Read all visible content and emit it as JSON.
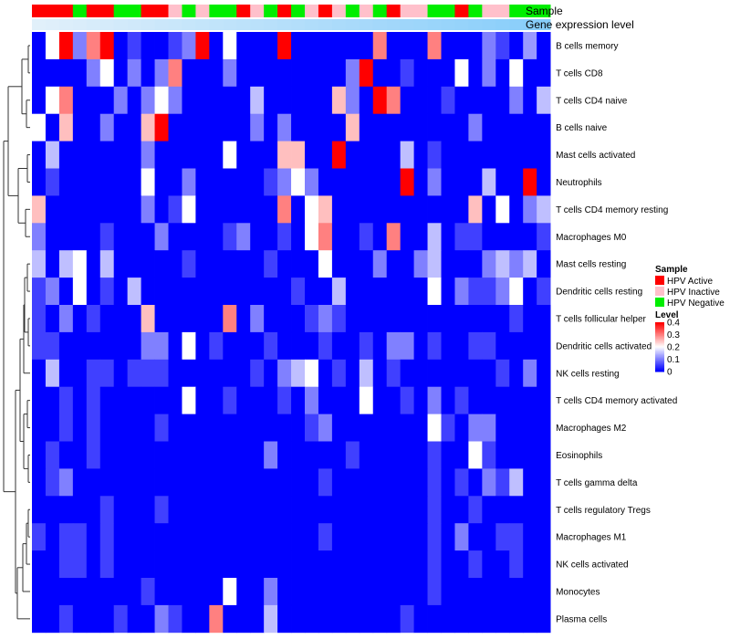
{
  "chart_data": {
    "type": "heatmap",
    "annotation_labels": [
      "Sample",
      "Gene expression level"
    ],
    "rows": [
      "B cells memory",
      "T cells CD8",
      "T cells CD4 naive",
      "B cells naive",
      "Mast cells activated",
      "Neutrophils",
      "T cells CD4 memory resting",
      "Macrophages M0",
      "Mast cells resting",
      "Dendritic cells resting",
      "T cells follicular helper",
      "Dendritic cells activated",
      "NK cells resting",
      "T cells CD4 memory activated",
      "Macrophages M2",
      "Eosinophils",
      "T cells gamma delta",
      "T cells regulatory  Tregs",
      "Macrophages M1",
      "NK cells activated",
      "Monocytes",
      "Plasma cells"
    ],
    "sample_groups": [
      "A",
      "A",
      "A",
      "N",
      "A",
      "A",
      "N",
      "N",
      "A",
      "A",
      "I",
      "N",
      "I",
      "N",
      "N",
      "A",
      "I",
      "N",
      "A",
      "N",
      "I",
      "A",
      "I",
      "N",
      "I",
      "N",
      "A",
      "I",
      "I",
      "N",
      "N",
      "A",
      "N",
      "I",
      "I",
      "N",
      "N",
      "N"
    ],
    "values": [
      [
        0.0,
        0.2,
        0.4,
        0.1,
        0.3,
        0.4,
        0.0,
        0.05,
        0.0,
        0.0,
        0.05,
        0.1,
        0.4,
        0.0,
        0.2,
        0.0,
        0.0,
        0.0,
        0.4,
        0.0,
        0.0,
        0.0,
        0.0,
        0.0,
        0.0,
        0.3,
        0.0,
        0.0,
        0.0,
        0.3,
        0.0,
        0.0,
        0.0,
        0.1,
        0.05,
        0.0,
        0.12,
        0.0
      ],
      [
        0.0,
        0.0,
        0.0,
        0.0,
        0.1,
        0.2,
        0.0,
        0.1,
        0.0,
        0.1,
        0.3,
        0.0,
        0.0,
        0.0,
        0.1,
        0.0,
        0.0,
        0.0,
        0.0,
        0.0,
        0.0,
        0.0,
        0.0,
        0.1,
        0.4,
        0.0,
        0.0,
        0.05,
        0.0,
        0.0,
        0.0,
        0.2,
        0.0,
        0.1,
        0.0,
        0.2,
        0.0,
        0.0
      ],
      [
        0.0,
        0.2,
        0.3,
        0.0,
        0.0,
        0.0,
        0.1,
        0.0,
        0.1,
        0.2,
        0.1,
        0.0,
        0.0,
        0.0,
        0.0,
        0.0,
        0.15,
        0.0,
        0.0,
        0.0,
        0.0,
        0.0,
        0.25,
        0.1,
        0.0,
        0.4,
        0.3,
        0.0,
        0.0,
        0.0,
        0.05,
        0.0,
        0.0,
        0.0,
        0.0,
        0.1,
        0.0,
        0.15
      ],
      [
        0.2,
        0.0,
        0.25,
        0.0,
        0.0,
        0.1,
        0.0,
        0.0,
        0.25,
        0.4,
        0.0,
        0.0,
        0.0,
        0.0,
        0.0,
        0.0,
        0.1,
        0.0,
        0.1,
        0.0,
        0.0,
        0.0,
        0.0,
        0.25,
        0.0,
        0.0,
        0.0,
        0.0,
        0.0,
        0.0,
        0.0,
        0.0,
        0.1,
        0.0,
        0.0,
        0.0,
        0.0,
        0.0
      ],
      [
        0.0,
        0.15,
        0.0,
        0.0,
        0.0,
        0.0,
        0.0,
        0.0,
        0.1,
        0.0,
        0.0,
        0.0,
        0.0,
        0.0,
        0.2,
        0.0,
        0.0,
        0.0,
        0.25,
        0.25,
        0.0,
        0.0,
        0.4,
        0.0,
        0.0,
        0.0,
        0.0,
        0.15,
        0.0,
        0.05,
        0.0,
        0.0,
        0.0,
        0.0,
        0.0,
        0.0,
        0.0,
        0.0
      ],
      [
        0.0,
        0.05,
        0.0,
        0.0,
        0.0,
        0.0,
        0.0,
        0.0,
        0.2,
        0.0,
        0.0,
        0.1,
        0.0,
        0.0,
        0.0,
        0.0,
        0.0,
        0.05,
        0.1,
        0.2,
        0.1,
        0.0,
        0.0,
        0.0,
        0.0,
        0.0,
        0.0,
        0.4,
        0.0,
        0.1,
        0.0,
        0.0,
        0.0,
        0.15,
        0.0,
        0.0,
        0.4,
        0.0
      ],
      [
        0.25,
        0.0,
        0.0,
        0.0,
        0.0,
        0.0,
        0.0,
        0.0,
        0.1,
        0.0,
        0.05,
        0.2,
        0.0,
        0.0,
        0.0,
        0.0,
        0.0,
        0.0,
        0.3,
        0.0,
        0.2,
        0.25,
        0.0,
        0.0,
        0.0,
        0.0,
        0.0,
        0.0,
        0.0,
        0.0,
        0.0,
        0.0,
        0.25,
        0.0,
        0.2,
        0.0,
        0.1,
        0.15
      ],
      [
        0.1,
        0.0,
        0.0,
        0.0,
        0.0,
        0.05,
        0.0,
        0.0,
        0.0,
        0.1,
        0.0,
        0.0,
        0.0,
        0.0,
        0.05,
        0.1,
        0.0,
        0.0,
        0.05,
        0.0,
        0.2,
        0.3,
        0.0,
        0.0,
        0.05,
        0.0,
        0.3,
        0.0,
        0.0,
        0.15,
        0.0,
        0.05,
        0.05,
        0.0,
        0.0,
        0.0,
        0.0,
        0.05
      ],
      [
        0.15,
        0.0,
        0.15,
        0.2,
        0.0,
        0.15,
        0.0,
        0.0,
        0.0,
        0.0,
        0.0,
        0.05,
        0.0,
        0.0,
        0.0,
        0.0,
        0.0,
        0.05,
        0.0,
        0.0,
        0.0,
        0.2,
        0.0,
        0.0,
        0.0,
        0.1,
        0.0,
        0.0,
        0.1,
        0.15,
        0.0,
        0.0,
        0.0,
        0.1,
        0.15,
        0.1,
        0.15,
        0.0
      ],
      [
        0.05,
        0.1,
        0.0,
        0.2,
        0.0,
        0.05,
        0.0,
        0.15,
        0.0,
        0.0,
        0.0,
        0.0,
        0.0,
        0.0,
        0.0,
        0.0,
        0.0,
        0.0,
        0.0,
        0.05,
        0.0,
        0.0,
        0.15,
        0.0,
        0.0,
        0.0,
        0.0,
        0.0,
        0.0,
        0.2,
        0.0,
        0.1,
        0.05,
        0.05,
        0.1,
        0.2,
        0.0,
        0.05
      ],
      [
        0.05,
        0.0,
        0.1,
        0.0,
        0.05,
        0.0,
        0.0,
        0.0,
        0.25,
        0.0,
        0.0,
        0.0,
        0.0,
        0.0,
        0.3,
        0.0,
        0.1,
        0.0,
        0.0,
        0.0,
        0.05,
        0.1,
        0.05,
        0.0,
        0.0,
        0.0,
        0.0,
        0.0,
        0.0,
        0.0,
        0.0,
        0.0,
        0.0,
        0.0,
        0.0,
        0.05,
        0.0,
        0.0
      ],
      [
        0.05,
        0.05,
        0.0,
        0.0,
        0.0,
        0.0,
        0.0,
        0.0,
        0.1,
        0.1,
        0.0,
        0.2,
        0.0,
        0.05,
        0.0,
        0.0,
        0.0,
        0.05,
        0.0,
        0.0,
        0.0,
        0.05,
        0.0,
        0.0,
        0.05,
        0.0,
        0.1,
        0.1,
        0.0,
        0.05,
        0.0,
        0.0,
        0.05,
        0.05,
        0.0,
        0.0,
        0.0,
        0.0
      ],
      [
        0.0,
        0.15,
        0.0,
        0.0,
        0.05,
        0.05,
        0.0,
        0.05,
        0.05,
        0.05,
        0.0,
        0.0,
        0.0,
        0.0,
        0.0,
        0.0,
        0.05,
        0.0,
        0.1,
        0.15,
        0.2,
        0.0,
        0.05,
        0.0,
        0.15,
        0.0,
        0.05,
        0.0,
        0.0,
        0.0,
        0.0,
        0.0,
        0.0,
        0.0,
        0.05,
        0.0,
        0.1,
        0.0
      ],
      [
        0.0,
        0.0,
        0.05,
        0.0,
        0.05,
        0.0,
        0.0,
        0.0,
        0.0,
        0.0,
        0.0,
        0.2,
        0.0,
        0.0,
        0.05,
        0.0,
        0.0,
        0.0,
        0.05,
        0.0,
        0.1,
        0.0,
        0.0,
        0.0,
        0.2,
        0.0,
        0.0,
        0.05,
        0.0,
        0.1,
        0.0,
        0.05,
        0.0,
        0.0,
        0.0,
        0.0,
        0.0,
        0.0
      ],
      [
        0.0,
        0.0,
        0.05,
        0.0,
        0.05,
        0.0,
        0.0,
        0.0,
        0.0,
        0.05,
        0.0,
        0.0,
        0.0,
        0.0,
        0.0,
        0.0,
        0.0,
        0.0,
        0.0,
        0.0,
        0.05,
        0.1,
        0.0,
        0.0,
        0.0,
        0.0,
        0.0,
        0.0,
        0.0,
        0.2,
        0.05,
        0.0,
        0.1,
        0.1,
        0.0,
        0.0,
        0.0,
        0.0
      ],
      [
        0.0,
        0.05,
        0.0,
        0.0,
        0.05,
        0.0,
        0.0,
        0.0,
        0.0,
        0.0,
        0.0,
        0.0,
        0.0,
        0.0,
        0.0,
        0.0,
        0.0,
        0.1,
        0.0,
        0.0,
        0.0,
        0.0,
        0.0,
        0.05,
        0.0,
        0.0,
        0.0,
        0.0,
        0.0,
        0.05,
        0.0,
        0.0,
        0.2,
        0.05,
        0.0,
        0.0,
        0.0,
        0.0
      ],
      [
        0.0,
        0.05,
        0.1,
        0.0,
        0.0,
        0.0,
        0.0,
        0.0,
        0.0,
        0.0,
        0.0,
        0.0,
        0.0,
        0.0,
        0.0,
        0.0,
        0.0,
        0.0,
        0.0,
        0.0,
        0.0,
        0.05,
        0.0,
        0.0,
        0.0,
        0.0,
        0.0,
        0.0,
        0.0,
        0.05,
        0.0,
        0.05,
        0.0,
        0.1,
        0.05,
        0.15,
        0.0,
        0.0
      ],
      [
        0.0,
        0.0,
        0.0,
        0.0,
        0.0,
        0.05,
        0.0,
        0.0,
        0.0,
        0.05,
        0.0,
        0.0,
        0.0,
        0.0,
        0.0,
        0.0,
        0.0,
        0.0,
        0.0,
        0.0,
        0.0,
        0.0,
        0.0,
        0.0,
        0.0,
        0.0,
        0.0,
        0.0,
        0.0,
        0.05,
        0.0,
        0.0,
        0.05,
        0.0,
        0.0,
        0.0,
        0.0,
        0.0
      ],
      [
        0.05,
        0.0,
        0.05,
        0.05,
        0.0,
        0.05,
        0.0,
        0.0,
        0.0,
        0.0,
        0.0,
        0.0,
        0.0,
        0.0,
        0.0,
        0.0,
        0.0,
        0.0,
        0.0,
        0.0,
        0.0,
        0.05,
        0.0,
        0.0,
        0.0,
        0.0,
        0.0,
        0.0,
        0.0,
        0.05,
        0.0,
        0.1,
        0.0,
        0.0,
        0.05,
        0.05,
        0.0,
        0.0
      ],
      [
        0.0,
        0.0,
        0.05,
        0.05,
        0.0,
        0.05,
        0.0,
        0.0,
        0.0,
        0.0,
        0.0,
        0.0,
        0.0,
        0.0,
        0.0,
        0.0,
        0.0,
        0.0,
        0.0,
        0.0,
        0.0,
        0.0,
        0.0,
        0.0,
        0.0,
        0.0,
        0.0,
        0.0,
        0.0,
        0.05,
        0.0,
        0.0,
        0.05,
        0.0,
        0.0,
        0.05,
        0.0,
        0.0
      ],
      [
        0.0,
        0.0,
        0.0,
        0.0,
        0.0,
        0.0,
        0.0,
        0.0,
        0.05,
        0.0,
        0.0,
        0.0,
        0.0,
        0.0,
        0.2,
        0.0,
        0.0,
        0.1,
        0.0,
        0.0,
        0.0,
        0.0,
        0.0,
        0.0,
        0.0,
        0.0,
        0.0,
        0.0,
        0.0,
        0.05,
        0.0,
        0.0,
        0.0,
        0.0,
        0.0,
        0.0,
        0.0,
        0.0
      ],
      [
        0.0,
        0.0,
        0.05,
        0.0,
        0.0,
        0.0,
        0.05,
        0.0,
        0.0,
        0.1,
        0.05,
        0.0,
        0.0,
        0.3,
        0.0,
        0.0,
        0.0,
        0.15,
        0.0,
        0.0,
        0.0,
        0.0,
        0.0,
        0.0,
        0.0,
        0.0,
        0.0,
        0.05,
        0.0,
        0.0,
        0.0,
        0.0,
        0.0,
        0.0,
        0.0,
        0.0,
        0.0,
        0.0
      ]
    ],
    "legend": {
      "sample": {
        "title": "Sample",
        "items": [
          {
            "key": "A",
            "label": "HPV Active",
            "color": "#ff0000"
          },
          {
            "key": "I",
            "label": "HPV Inactive",
            "color": "#ffc0cb"
          },
          {
            "key": "N",
            "label": "HPV Negative",
            "color": "#00ee00"
          }
        ]
      },
      "level": {
        "title": "Level",
        "ticks": [
          "0.4",
          "0.3",
          "0.2",
          "0.1",
          "0"
        ],
        "range": [
          0,
          0.4
        ]
      }
    },
    "colors": {
      "low": "#0000ff",
      "mid": "#ffffff",
      "high": "#ff0000",
      "expression_bar": "#87cefa"
    }
  }
}
